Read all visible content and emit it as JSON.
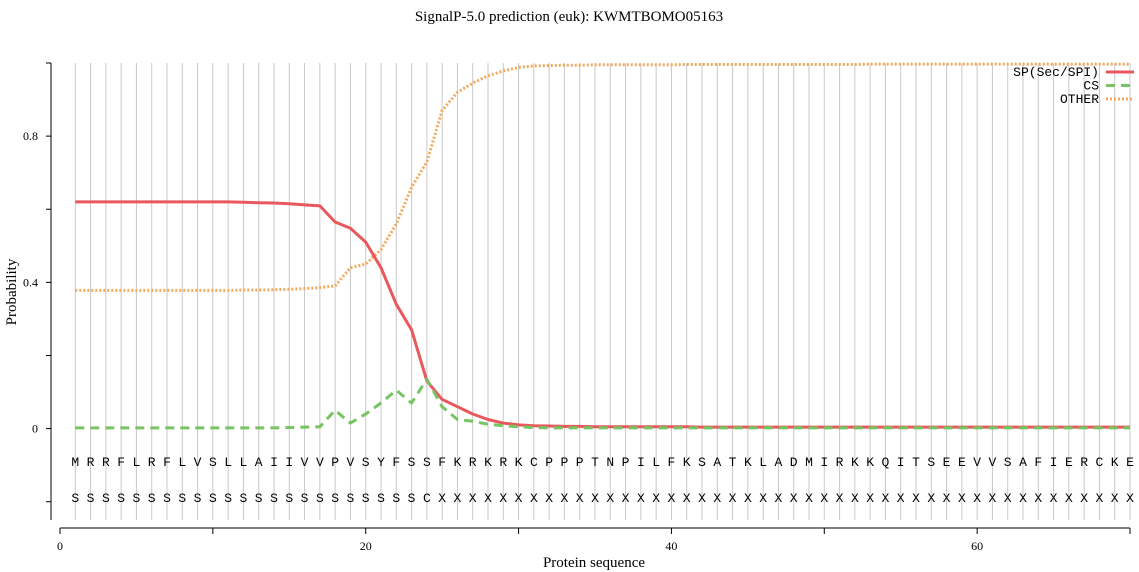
{
  "chart_data": {
    "type": "line",
    "title": "SignalP-5.0 prediction (euk):  KWMTBOMO05163",
    "xlabel": "Protein sequence",
    "ylabel": "Probability",
    "xlim": [
      0,
      70
    ],
    "ylim": [
      -0.25,
      1.0
    ],
    "xticks": [
      0,
      20,
      40,
      60
    ],
    "xminor_ticks": [
      10,
      30,
      50,
      70
    ],
    "yticks": [
      0,
      0.4,
      0.8
    ],
    "yminor_ticks": [
      -0.2,
      0.2,
      0.6,
      1.0
    ],
    "sequence": [
      "M",
      "R",
      "R",
      "F",
      "L",
      "R",
      "F",
      "L",
      "V",
      "S",
      "L",
      "L",
      "A",
      "I",
      "I",
      "V",
      "V",
      "P",
      "V",
      "S",
      "Y",
      "F",
      "S",
      "S",
      "F",
      "K",
      "R",
      "K",
      "R",
      "K",
      "C",
      "P",
      "P",
      "P",
      "T",
      "N",
      "P",
      "I",
      "L",
      "F",
      "K",
      "S",
      "A",
      "T",
      "K",
      "L",
      "A",
      "D",
      "M",
      "I",
      "R",
      "K",
      "K",
      "Q",
      "I",
      "T",
      "S",
      "E",
      "E",
      "V",
      "V",
      "S",
      "A",
      "F",
      "I",
      "E",
      "R",
      "C",
      "K",
      "E"
    ],
    "labels": [
      "S",
      "S",
      "S",
      "S",
      "S",
      "S",
      "S",
      "S",
      "S",
      "S",
      "S",
      "S",
      "S",
      "S",
      "S",
      "S",
      "S",
      "S",
      "S",
      "S",
      "S",
      "S",
      "S",
      "C",
      "X",
      "X",
      "X",
      "X",
      "X",
      "X",
      "X",
      "X",
      "X",
      "X",
      "X",
      "X",
      "X",
      "X",
      "X",
      "X",
      "X",
      "X",
      "X",
      "X",
      "X",
      "X",
      "X",
      "X",
      "X",
      "X",
      "X",
      "X",
      "X",
      "X",
      "X",
      "X",
      "X",
      "X",
      "X",
      "X",
      "X",
      "X",
      "X",
      "X",
      "X",
      "X",
      "X",
      "X",
      "X",
      "X"
    ],
    "series": [
      {
        "name": "SP(Sec/SPI)",
        "color": "#e8585c",
        "style": "solid",
        "values": [
          0.62,
          0.62,
          0.62,
          0.62,
          0.62,
          0.62,
          0.62,
          0.62,
          0.62,
          0.62,
          0.62,
          0.619,
          0.618,
          0.617,
          0.615,
          0.612,
          0.609,
          0.565,
          0.548,
          0.51,
          0.44,
          0.34,
          0.27,
          0.13,
          0.08,
          0.06,
          0.04,
          0.025,
          0.015,
          0.01,
          0.008,
          0.007,
          0.006,
          0.006,
          0.005,
          0.005,
          0.005,
          0.005,
          0.005,
          0.005,
          0.005,
          0.004,
          0.004,
          0.004,
          0.004,
          0.004,
          0.004,
          0.004,
          0.004,
          0.004,
          0.004,
          0.004,
          0.004,
          0.004,
          0.004,
          0.004,
          0.004,
          0.004,
          0.004,
          0.004,
          0.004,
          0.004,
          0.004,
          0.004,
          0.004,
          0.004,
          0.004,
          0.004,
          0.004,
          0.004
        ]
      },
      {
        "name": "CS",
        "color": "#76c462",
        "style": "dashed",
        "values": [
          0.002,
          0.002,
          0.002,
          0.002,
          0.002,
          0.002,
          0.002,
          0.002,
          0.002,
          0.002,
          0.002,
          0.002,
          0.002,
          0.002,
          0.003,
          0.004,
          0.005,
          0.05,
          0.015,
          0.04,
          0.07,
          0.105,
          0.07,
          0.135,
          0.06,
          0.025,
          0.02,
          0.012,
          0.008,
          0.005,
          0.003,
          0.002,
          0.002,
          0.002,
          0.002,
          0.002,
          0.002,
          0.002,
          0.002,
          0.002,
          0.002,
          0.002,
          0.002,
          0.002,
          0.002,
          0.002,
          0.002,
          0.002,
          0.002,
          0.002,
          0.002,
          0.002,
          0.002,
          0.002,
          0.002,
          0.002,
          0.002,
          0.002,
          0.002,
          0.002,
          0.002,
          0.002,
          0.002,
          0.002,
          0.002,
          0.002,
          0.002,
          0.002,
          0.002,
          0.002
        ]
      },
      {
        "name": "OTHER",
        "color": "#f4a95c",
        "style": "dotted",
        "values": [
          0.378,
          0.378,
          0.378,
          0.378,
          0.378,
          0.378,
          0.378,
          0.378,
          0.378,
          0.378,
          0.378,
          0.379,
          0.379,
          0.38,
          0.381,
          0.383,
          0.386,
          0.39,
          0.44,
          0.45,
          0.49,
          0.56,
          0.66,
          0.73,
          0.87,
          0.92,
          0.945,
          0.965,
          0.978,
          0.988,
          0.992,
          0.993,
          0.994,
          0.994,
          0.995,
          0.995,
          0.995,
          0.995,
          0.995,
          0.995,
          0.996,
          0.996,
          0.996,
          0.996,
          0.996,
          0.996,
          0.996,
          0.996,
          0.996,
          0.996,
          0.996,
          0.996,
          0.997,
          0.997,
          0.997,
          0.997,
          0.997,
          0.997,
          0.997,
          0.997,
          0.997,
          0.997,
          0.997,
          0.997,
          0.997,
          0.997,
          0.997,
          0.997,
          0.997,
          0.997
        ]
      }
    ],
    "legend_position": "top-right",
    "grid": "vertical lines at each residue"
  }
}
